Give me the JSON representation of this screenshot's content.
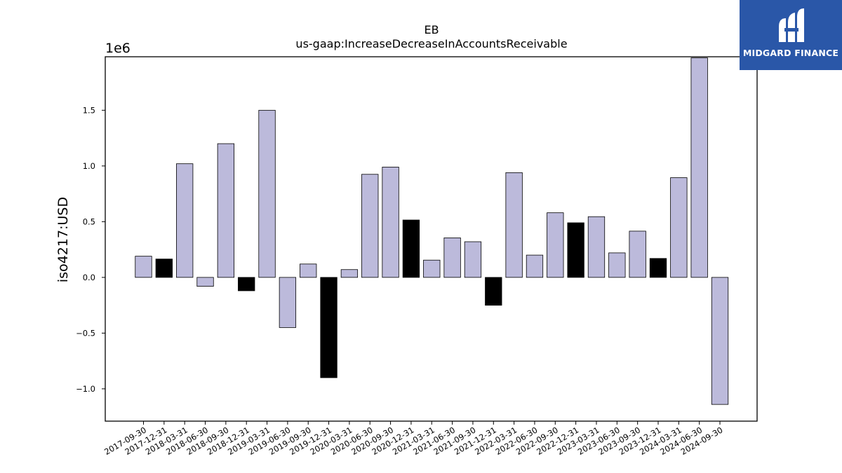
{
  "chart_data": {
    "type": "bar",
    "title": "EB",
    "subtitle": "us-gaap:IncreaseDecreaseInAccountsReceivable",
    "ylabel": "iso4217:USD",
    "xlabel": "",
    "offset_label": "1e6",
    "ylim": [
      -1.29,
      1.98
    ],
    "yticks": [
      -1.0,
      -0.5,
      0.0,
      0.5,
      1.0,
      1.5
    ],
    "ytick_labels": [
      "−1.0",
      "−0.5",
      "0.0",
      "0.5",
      "1.0",
      "1.5"
    ],
    "grid": false,
    "colors": {
      "default": "#bcbadb",
      "q4": "#000000",
      "edge": "#000000"
    },
    "categories": [
      "2017-09-30",
      "2017-12-31",
      "2018-03-31",
      "2018-06-30",
      "2018-09-30",
      "2018-12-31",
      "2019-03-31",
      "2019-06-30",
      "2019-09-30",
      "2019-12-31",
      "2020-03-31",
      "2020-06-30",
      "2020-09-30",
      "2020-12-31",
      "2021-03-31",
      "2021-06-30",
      "2021-09-30",
      "2021-12-31",
      "2022-03-31",
      "2022-06-30",
      "2022-09-30",
      "2022-12-31",
      "2023-03-31",
      "2023-06-30",
      "2023-09-30",
      "2023-12-31",
      "2024-03-31",
      "2024-06-30",
      "2024-09-30"
    ],
    "values": [
      0.19,
      0.165,
      1.02,
      -0.08,
      1.2,
      -0.12,
      1.5,
      -0.45,
      0.12,
      -0.9,
      0.07,
      0.925,
      0.99,
      0.515,
      0.155,
      0.355,
      0.32,
      -0.25,
      0.94,
      0.2,
      0.58,
      0.49,
      0.545,
      0.22,
      0.415,
      0.17,
      0.895,
      1.97,
      -1.14
    ],
    "highlighted": [
      false,
      true,
      false,
      false,
      false,
      true,
      false,
      false,
      false,
      true,
      false,
      false,
      false,
      true,
      false,
      false,
      false,
      true,
      false,
      false,
      false,
      true,
      false,
      false,
      false,
      true,
      false,
      false,
      false
    ]
  },
  "logo": {
    "text": "MIDGARD FINANCE",
    "bg_color": "#2a57a8"
  }
}
